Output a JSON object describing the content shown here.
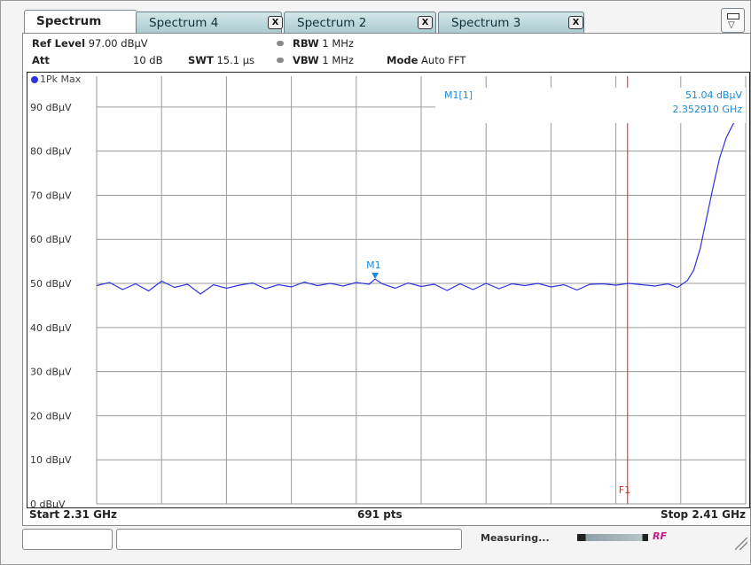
{
  "tabs": [
    {
      "label": "Spectrum",
      "active": true
    },
    {
      "label": "Spectrum 4",
      "close": "X"
    },
    {
      "label": "Spectrum 2",
      "close": "X"
    },
    {
      "label": "Spectrum 3",
      "close": "X"
    }
  ],
  "settings": {
    "ref_level_label": "Ref Level",
    "ref_level_value": "97.00 dBµV",
    "att_label": "Att",
    "att_value": "10 dB",
    "swt_label": "SWT",
    "swt_value": "15.1 µs",
    "rbw_label": "RBW",
    "rbw_value": "1 MHz",
    "vbw_label": "VBW",
    "vbw_value": "1 MHz",
    "mode_label": "Mode",
    "mode_value": "Auto FFT"
  },
  "trace": {
    "label": "1Pk Max",
    "color": "#2e33e0"
  },
  "marker": {
    "name": "M1",
    "readout_label": "M1[1]",
    "readout_level": "51.04 dBµV",
    "readout_freq": "2.352910 GHz",
    "color": "#1a8ad6"
  },
  "line": {
    "label": "F1",
    "color": "#e02020"
  },
  "footer": {
    "start": "Start 2.31 GHz",
    "points": "691 pts",
    "stop": "Stop 2.41 GHz"
  },
  "status": {
    "text": "Measuring...",
    "indicator": "RF"
  },
  "chart_data": {
    "type": "line",
    "xlim": [
      2.31,
      2.41
    ],
    "ylim": [
      0,
      97
    ],
    "yticks": [
      {
        "value": 90,
        "label": "90 dBµV"
      },
      {
        "value": 80,
        "label": "80 dBµV"
      },
      {
        "value": 70,
        "label": "70 dBµV"
      },
      {
        "value": 60,
        "label": "60 dBµV"
      },
      {
        "value": 50,
        "label": "50 dBµV"
      },
      {
        "value": 40,
        "label": "40 dBµV"
      },
      {
        "value": 30,
        "label": "30 dBµV"
      },
      {
        "value": 20,
        "label": "20 dBµV"
      },
      {
        "value": 10,
        "label": "10 dBµV"
      },
      {
        "value": 0,
        "label": "0 dBµV"
      }
    ],
    "vlines_x": [
      2.31,
      2.32,
      2.33,
      2.34,
      2.35,
      2.36,
      2.37,
      2.38,
      2.39,
      2.4,
      2.41
    ],
    "f1_x": 2.3918,
    "marker_point": {
      "x": 2.35291,
      "y": 51.04
    },
    "series": [
      {
        "x": [
          2.31,
          2.312,
          2.314,
          2.316,
          2.318,
          2.32,
          2.322,
          2.324,
          2.326,
          2.328,
          2.33,
          2.332,
          2.334,
          2.336,
          2.338,
          2.34,
          2.342,
          2.344,
          2.346,
          2.348,
          2.35,
          2.352,
          2.3529,
          2.354,
          2.356,
          2.358,
          2.36,
          2.362,
          2.364,
          2.366,
          2.368,
          2.37,
          2.372,
          2.374,
          2.376,
          2.378,
          2.38,
          2.382,
          2.384,
          2.386,
          2.388,
          2.39,
          2.392,
          2.394,
          2.396,
          2.398,
          2.3995,
          2.401,
          2.402,
          2.403,
          2.404,
          2.405,
          2.406,
          2.407,
          2.408,
          2.409,
          2.41
        ],
        "y": [
          49.5,
          50.2,
          48.6,
          49.9,
          48.3,
          50.5,
          49.1,
          49.8,
          47.6,
          49.7,
          48.9,
          49.6,
          50.1,
          48.8,
          49.7,
          49.2,
          50.3,
          49.5,
          50.0,
          49.4,
          50.2,
          49.8,
          51.0,
          49.9,
          48.9,
          50.1,
          49.3,
          49.8,
          48.4,
          49.9,
          48.6,
          50.0,
          48.8,
          49.9,
          49.5,
          50.0,
          49.2,
          49.7,
          48.5,
          49.8,
          49.9,
          49.6,
          50.0,
          49.7,
          49.4,
          49.9,
          49.1,
          50.6,
          53.0,
          58.0,
          65.0,
          72.0,
          78.5,
          83.0,
          86.0,
          88.0,
          89.5
        ]
      }
    ]
  }
}
